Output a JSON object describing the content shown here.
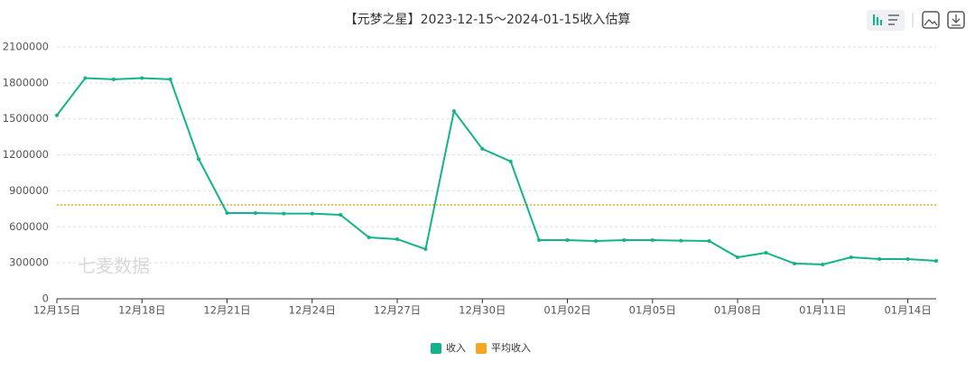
{
  "chart_data": {
    "type": "line",
    "title": "【元梦之星】2023-12-15～2024-01-15收入估算",
    "categories": [
      "12月15日",
      null,
      null,
      "12月18日",
      null,
      null,
      "12月21日",
      null,
      null,
      "12月24日",
      null,
      null,
      "12月27日",
      null,
      null,
      "12月30日",
      null,
      null,
      "01月02日",
      null,
      null,
      "01月05日",
      null,
      null,
      "01月08日",
      null,
      null,
      "01月11日",
      null,
      null,
      "01月14日",
      null
    ],
    "series": [
      {
        "name": "收入",
        "color": "#13b38b",
        "values": [
          1530000,
          1840000,
          1830000,
          1840000,
          1830000,
          1165000,
          715000,
          715000,
          710000,
          710000,
          700000,
          512000,
          497000,
          414000,
          1565000,
          1250000,
          1145000,
          489000,
          489000,
          482000,
          489000,
          489000,
          485000,
          482000,
          346000,
          384000,
          294000,
          286000,
          346000,
          331000,
          331000,
          316000
        ]
      }
    ],
    "average_line": {
      "name": "平均收入",
      "color": "#f5a623",
      "value": 783000
    },
    "ylim": [
      0,
      2100000
    ],
    "yticks": [
      0,
      300000,
      600000,
      900000,
      1200000,
      1500000,
      1800000,
      2100000
    ],
    "grid": true,
    "legend": "bottom",
    "watermark": "七麦数据"
  }
}
